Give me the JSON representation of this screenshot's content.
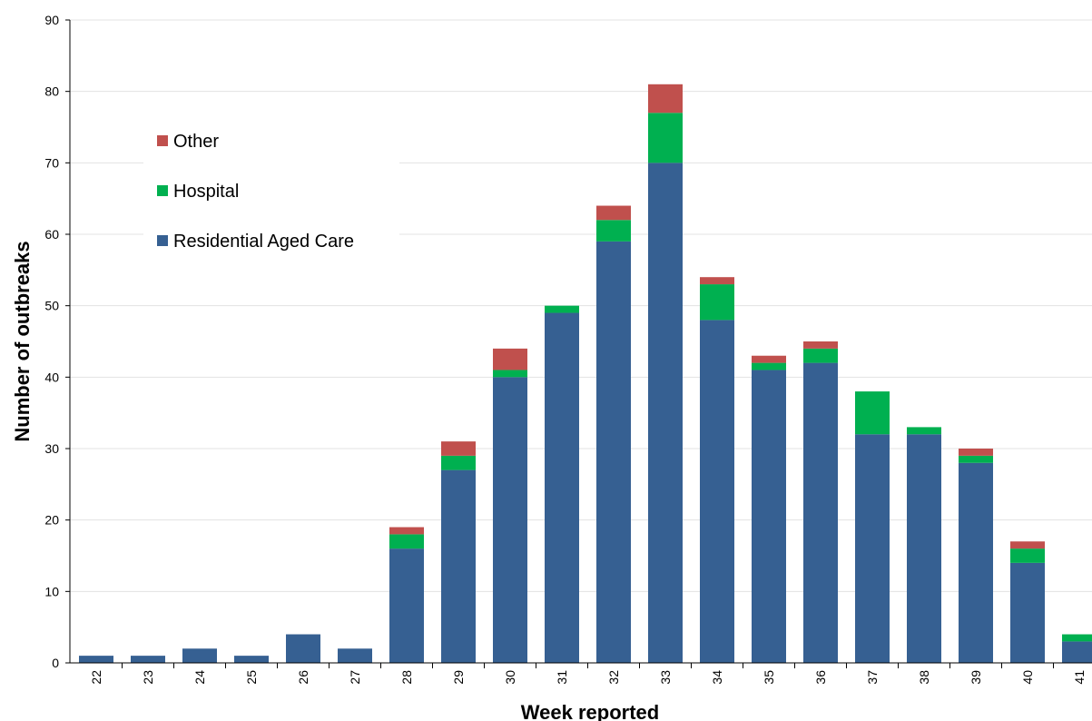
{
  "chart_data": {
    "type": "bar",
    "stacked": true,
    "categories": [
      "22",
      "23",
      "24",
      "25",
      "26",
      "27",
      "28",
      "29",
      "30",
      "31",
      "32",
      "33",
      "34",
      "35",
      "36",
      "37",
      "38",
      "39",
      "40",
      "41"
    ],
    "series": [
      {
        "name": "Residential Aged Care",
        "color": "#366092",
        "values": [
          1,
          1,
          2,
          1,
          4,
          2,
          16,
          27,
          40,
          49,
          59,
          70,
          48,
          41,
          42,
          32,
          32,
          28,
          14,
          3
        ]
      },
      {
        "name": "Hospital",
        "color": "#00B050",
        "values": [
          0,
          0,
          0,
          0,
          0,
          0,
          2,
          2,
          1,
          1,
          3,
          7,
          5,
          1,
          2,
          6,
          1,
          1,
          2,
          1
        ]
      },
      {
        "name": "Other",
        "color": "#C0504D",
        "values": [
          0,
          0,
          0,
          0,
          0,
          0,
          1,
          2,
          3,
          0,
          2,
          4,
          1,
          1,
          1,
          0,
          0,
          1,
          1,
          0
        ]
      }
    ],
    "legend_order": [
      "Other",
      "Hospital",
      "Residential Aged Care"
    ],
    "legend_placement": "top-left",
    "xlabel": "Week reported",
    "ylabel": "Number of outbreaks",
    "ylim": [
      0,
      90
    ],
    "yticks": [
      0,
      10,
      20,
      30,
      40,
      50,
      60,
      70,
      80,
      90
    ],
    "grid": true
  }
}
